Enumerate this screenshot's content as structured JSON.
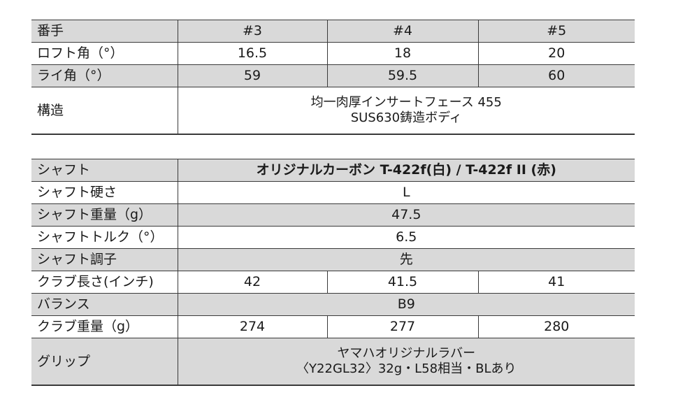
{
  "head_spec": {
    "header": {
      "label": "番手",
      "clubs": [
        "#3",
        "#4",
        "#5"
      ]
    },
    "loft": {
      "label": "ロフト角（°）",
      "values": [
        "16.5",
        "18",
        "20"
      ]
    },
    "lie": {
      "label": "ライ角（°）",
      "values": [
        "59",
        "59.5",
        "60"
      ]
    },
    "construction": {
      "label": "構造",
      "line1": "均一肉厚インサートフェース 455",
      "line2": "SUS630鋳造ボディ"
    }
  },
  "shaft_spec": {
    "shaft": {
      "label": "シャフト",
      "value": "オリジナルカーボン T-422f(白) / T-422f II (赤)"
    },
    "flex": {
      "label": "シャフト硬さ",
      "value": "L"
    },
    "weight": {
      "label": "シャフト重量（g）",
      "value": "47.5"
    },
    "torque": {
      "label": "シャフトトルク（°）",
      "value": "6.5"
    },
    "kick": {
      "label": "シャフト調子",
      "value": "先"
    },
    "length": {
      "label": "クラブ長さ(インチ)",
      "values": [
        "42",
        "41.5",
        "41"
      ]
    },
    "balance": {
      "label": "バランス",
      "value": "B9"
    },
    "club_weight": {
      "label": "クラブ重量（g）",
      "values": [
        "274",
        "277",
        "280"
      ]
    },
    "grip": {
      "label": "グリップ",
      "line1": "ヤマハオリジナルラバー",
      "line2": "〈Y22GL32〉32g・L58相当・BLあり"
    }
  },
  "colors": {
    "shade": "#d9d9d9",
    "rule": "#3a3a3a"
  }
}
